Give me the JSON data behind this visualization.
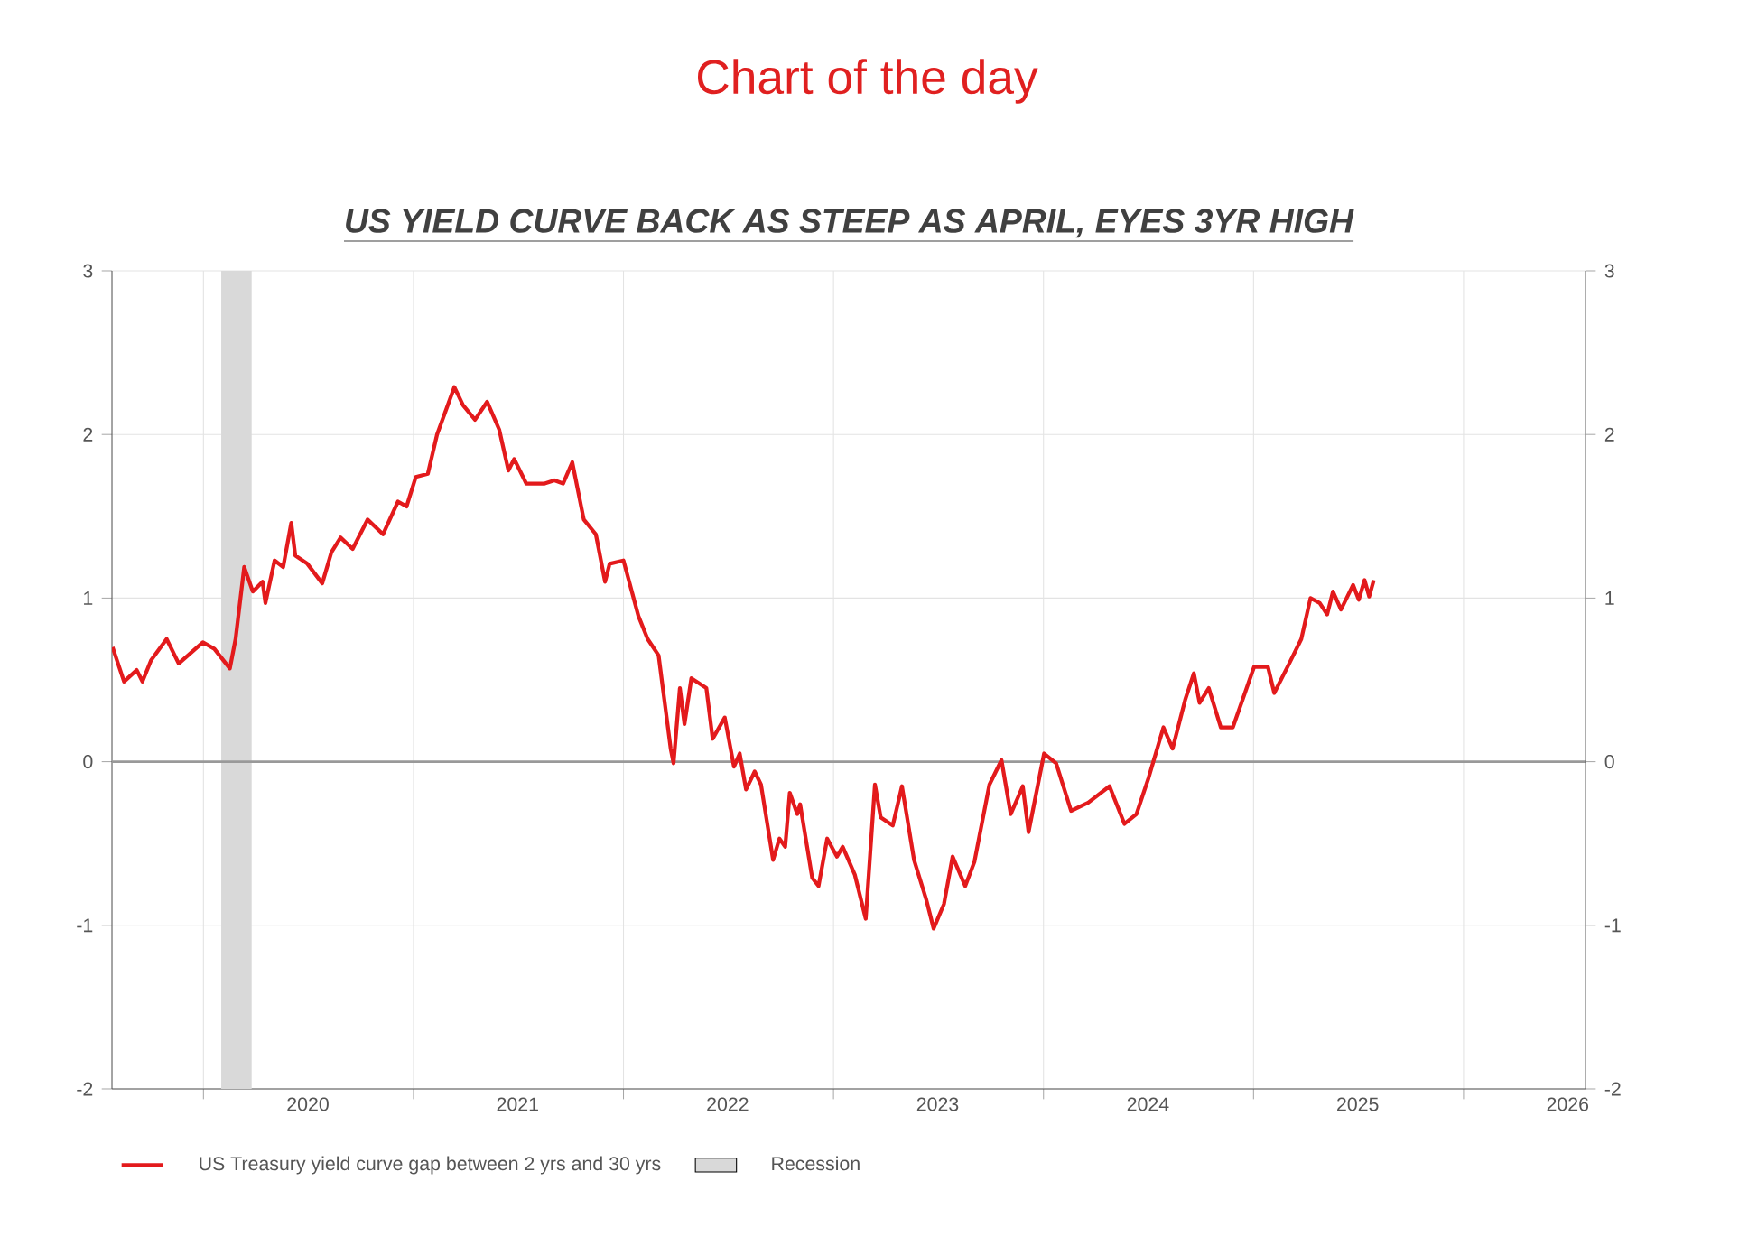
{
  "chart_data": {
    "type": "line",
    "title": "Chart of the day",
    "subtitle": "US YIELD CURVE BACK AS STEEP AS APRIL, EYES 3YR HIGH",
    "x": [
      "2019-07-27",
      "2019-08-16",
      "2019-09-07",
      "2019-09-17",
      "2019-10-02",
      "2019-10-29",
      "2019-11-19",
      "2019-12-31",
      "2020-01-20",
      "2020-02-16",
      "2020-02-26",
      "2020-03-12",
      "2020-03-27",
      "2020-04-13",
      "2020-04-18",
      "2020-05-04",
      "2020-05-19",
      "2020-06-02",
      "2020-06-09",
      "2020-06-30",
      "2020-07-26",
      "2020-08-11",
      "2020-08-27",
      "2020-09-17",
      "2020-10-13",
      "2020-11-09",
      "2020-12-05",
      "2020-12-20",
      "2021-01-05",
      "2021-01-26",
      "2021-02-11",
      "2021-03-13",
      "2021-03-28",
      "2021-04-18",
      "2021-05-09",
      "2021-05-30",
      "2021-06-15",
      "2021-06-25",
      "2021-07-16",
      "2021-08-17",
      "2021-09-03",
      "2021-09-18",
      "2021-10-04",
      "2021-10-24",
      "2021-11-14",
      "2021-11-30",
      "2021-12-08",
      "2022-01-01",
      "2022-01-27",
      "2022-02-12",
      "2022-03-03",
      "2022-03-24",
      "2022-03-29",
      "2022-04-09",
      "2022-04-17",
      "2022-04-29",
      "2022-05-25",
      "2022-06-05",
      "2022-06-26",
      "2022-07-12",
      "2022-07-22",
      "2022-08-02",
      "2022-08-17",
      "2022-08-28",
      "2022-09-18",
      "2022-09-29",
      "2022-10-09",
      "2022-10-17",
      "2022-10-30",
      "2022-11-04",
      "2022-11-25",
      "2022-12-06",
      "2022-12-21",
      "2023-01-07",
      "2023-01-17",
      "2023-02-07",
      "2023-02-26",
      "2023-03-14",
      "2023-03-24",
      "2023-04-14",
      "2023-04-30",
      "2023-05-21",
      "2023-06-11",
      "2023-06-24",
      "2023-07-12",
      "2023-07-27",
      "2023-08-18",
      "2023-09-03",
      "2023-09-29",
      "2023-10-20",
      "2023-11-05",
      "2023-11-26",
      "2023-12-06",
      "2024-01-02",
      "2024-01-23",
      "2024-02-18",
      "2024-03-19",
      "2024-04-25",
      "2024-05-21",
      "2024-06-11",
      "2024-07-02",
      "2024-07-28",
      "2024-08-13",
      "2024-09-04",
      "2024-09-19",
      "2024-09-29",
      "2024-10-15",
      "2024-11-05",
      "2024-11-26",
      "2025-01-02",
      "2025-01-26",
      "2025-02-06",
      "2025-03-04",
      "2025-03-25",
      "2025-04-10",
      "2025-04-26",
      "2025-05-09",
      "2025-05-19",
      "2025-06-02",
      "2025-06-23",
      "2025-07-03",
      "2025-07-13",
      "2025-07-21",
      "2025-07-29"
    ],
    "series": [
      {
        "name": "US Treasury yield curve gap between 2 yrs and 30 yrs",
        "color": "#e31a1c",
        "values": [
          0.7,
          0.49,
          0.56,
          0.49,
          0.62,
          0.75,
          0.6,
          0.73,
          0.69,
          0.57,
          0.75,
          1.19,
          1.04,
          1.1,
          0.97,
          1.23,
          1.19,
          1.46,
          1.26,
          1.21,
          1.09,
          1.28,
          1.37,
          1.3,
          1.48,
          1.39,
          1.59,
          1.56,
          1.74,
          1.76,
          2.0,
          2.29,
          2.18,
          2.09,
          2.2,
          2.03,
          1.78,
          1.85,
          1.7,
          1.7,
          1.72,
          1.7,
          1.83,
          1.48,
          1.39,
          1.1,
          1.21,
          1.23,
          0.89,
          0.75,
          0.65,
          0.08,
          -0.01,
          0.45,
          0.23,
          0.51,
          0.45,
          0.14,
          0.27,
          -0.03,
          0.05,
          -0.17,
          -0.06,
          -0.14,
          -0.6,
          -0.47,
          -0.52,
          -0.19,
          -0.32,
          -0.26,
          -0.71,
          -0.76,
          -0.47,
          -0.58,
          -0.52,
          -0.69,
          -0.96,
          -0.14,
          -0.34,
          -0.39,
          -0.15,
          -0.6,
          -0.84,
          -1.02,
          -0.87,
          -0.58,
          -0.76,
          -0.61,
          -0.14,
          0.01,
          -0.32,
          -0.15,
          -0.43,
          0.05,
          -0.01,
          -0.3,
          -0.25,
          -0.15,
          -0.38,
          -0.32,
          -0.1,
          0.21,
          0.08,
          0.38,
          0.54,
          0.36,
          0.45,
          0.21,
          0.21,
          0.58,
          0.58,
          0.42,
          0.6,
          0.75,
          1.0,
          0.97,
          0.9,
          1.04,
          0.93,
          1.08,
          0.99,
          1.11,
          1.01,
          1.11
        ]
      }
    ],
    "xlim": [
      "2019-07-26",
      "2026-08-01"
    ],
    "xticks": [
      {
        "value": "2020-01-01",
        "label": null
      },
      {
        "value": "2021-01-01",
        "label": null
      },
      {
        "value": "2022-01-01",
        "label": null
      },
      {
        "value": "2023-01-01",
        "label": null
      },
      {
        "value": "2024-01-01",
        "label": null
      },
      {
        "value": "2025-01-01",
        "label": null
      },
      {
        "value": "2026-01-01",
        "label": null
      },
      {
        "value": "2020-07-01",
        "label": "2020"
      },
      {
        "value": "2021-07-01",
        "label": "2021"
      },
      {
        "value": "2022-07-01",
        "label": "2022"
      },
      {
        "value": "2023-07-01",
        "label": "2023"
      },
      {
        "value": "2024-07-01",
        "label": "2024"
      },
      {
        "value": "2025-07-01",
        "label": "2025"
      },
      {
        "value": "2026-07-01",
        "label": "2026"
      }
    ],
    "ylim": [
      -2,
      3
    ],
    "yticks": [
      -2,
      -1,
      0,
      1,
      2,
      3
    ],
    "y2lim": [
      -2,
      3
    ],
    "y2ticks": [
      -2,
      -1,
      0,
      1,
      2,
      3
    ],
    "bands": [
      {
        "axis": "x",
        "from": "2020-02-01",
        "to": "2020-03-25",
        "label": "Recession",
        "color": "#d9d9d9"
      }
    ],
    "ref_lines": [
      {
        "axis": "y",
        "value": 0,
        "color": "#999999"
      }
    ],
    "grid": true,
    "legend": "bottom",
    "marker": "none",
    "line_style": "solid"
  }
}
